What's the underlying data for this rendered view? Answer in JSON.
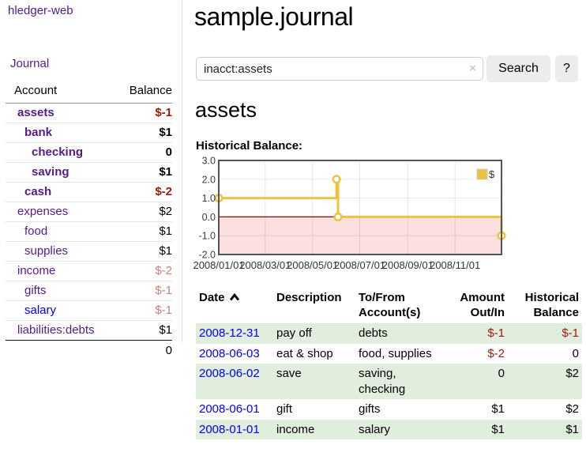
{
  "app": {
    "brand": "hledger-web",
    "nav_journal_label": "Journal"
  },
  "sidebar": {
    "accounts_header": {
      "account": "Account",
      "balance": "Balance"
    },
    "accounts": [
      {
        "name": "assets",
        "indent": 0,
        "bold": true,
        "balance": "$-1"
      },
      {
        "name": "bank",
        "indent": 1,
        "bold": true,
        "balance": "$1"
      },
      {
        "name": "checking",
        "indent": 2,
        "bold": true,
        "balance": "0"
      },
      {
        "name": "saving",
        "indent": 2,
        "bold": true,
        "balance": "$1"
      },
      {
        "name": "cash",
        "indent": 1,
        "bold": true,
        "balance": "$-2"
      },
      {
        "name": "expenses",
        "indent": 0,
        "bold": false,
        "balance": "$2"
      },
      {
        "name": "food",
        "indent": 1,
        "bold": false,
        "balance": "$1"
      },
      {
        "name": "supplies",
        "indent": 1,
        "bold": false,
        "balance": "$1"
      },
      {
        "name": "income",
        "indent": 0,
        "bold": false,
        "balance": "$-2",
        "muted": true
      },
      {
        "name": "gifts",
        "indent": 1,
        "bold": false,
        "balance": "$-1",
        "muted": true
      },
      {
        "name": "salary",
        "indent": 1,
        "bold": false,
        "balance": "$-1",
        "muted": true,
        "link_color": "blue"
      },
      {
        "name": "liabilities:debts",
        "indent": 0,
        "bold": false,
        "balance": "$1"
      }
    ],
    "total": "0"
  },
  "header": {
    "title": "sample.journal"
  },
  "search": {
    "query": "inacct:assets",
    "clear_icon": "×",
    "button_label": "Search",
    "help_label": "?"
  },
  "account_page": {
    "heading": "assets",
    "chart_label": "Historical Balance:"
  },
  "chart_data": {
    "type": "line",
    "step": true,
    "title": "Historical Balance",
    "xrange": [
      "2008-01-01",
      "2008-12-31"
    ],
    "ylim": [
      -2.0,
      3.0
    ],
    "yticks": [
      "3.0",
      "2.0",
      "1.0",
      "0.0",
      "-1.0",
      "-2.0"
    ],
    "xticks": [
      "2008/01/01",
      "2008/03/01",
      "2008/05/01",
      "2008/07/01",
      "2008/09/01",
      "2008/11/01"
    ],
    "series": [
      {
        "name": "$",
        "color": "#edc240",
        "points": [
          [
            "2008-01-01",
            1.0
          ],
          [
            "2008-06-01",
            2.0
          ],
          [
            "2008-06-03",
            0.0
          ],
          [
            "2008-12-31",
            -1.0
          ]
        ]
      }
    ],
    "legend": {
      "label": "$",
      "position": "top-right"
    },
    "zero_line_color": "#8b0000",
    "negative_fill": "#fbdfdf",
    "grid": true
  },
  "register": {
    "columns": [
      {
        "line1": "Date",
        "line2": ""
      },
      {
        "line1": "Description",
        "line2": ""
      },
      {
        "line1": "To/From",
        "line2": "Account(s)"
      },
      {
        "line1": "Amount",
        "line2": "Out/In"
      },
      {
        "line1": "Historical",
        "line2": "Balance"
      }
    ],
    "rows": [
      {
        "date": "2008-12-31",
        "description": "pay off",
        "accounts": "debts",
        "amount": "$-1",
        "balance": "$-1",
        "shaded": true
      },
      {
        "date": "2008-06-03",
        "description": "eat & shop",
        "accounts": "food, supplies",
        "amount": "$-2",
        "balance": "0",
        "shaded": false
      },
      {
        "date": "2008-06-02",
        "description": "save",
        "accounts": "saving, checking",
        "amount": "0",
        "balance": "$2",
        "shaded": true
      },
      {
        "date": "2008-06-01",
        "description": "gift",
        "accounts": "gifts",
        "amount": "$1",
        "balance": "$2",
        "shaded": false
      },
      {
        "date": "2008-01-01",
        "description": "income",
        "accounts": "salary",
        "amount": "$1",
        "balance": "$1",
        "shaded": true
      }
    ]
  },
  "colors": {
    "link_purple": "#551a8b",
    "link_blue": "#0000ee",
    "negative": "#991b10",
    "negative_muted": "#c4837e",
    "row_green": "#e2eedd",
    "series_gold": "#edc240",
    "chart_border": "#545454"
  }
}
